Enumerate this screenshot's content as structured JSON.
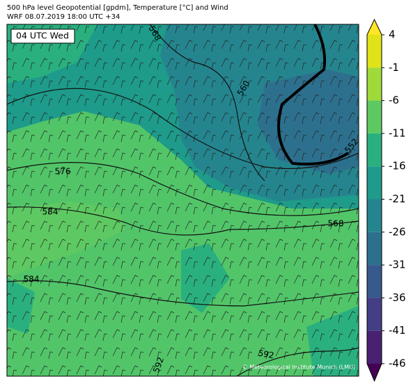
{
  "header": {
    "line1": "500 hPa level Geopotential [gpdm], Temperature [°C] and Wind",
    "line2": "WRF 08.07.2019 18:00 UTC +34"
  },
  "map": {
    "time_label": "04 UTC Wed",
    "contour_labels": [
      "568",
      "560",
      "552",
      "576",
      "584",
      "568",
      "584",
      "592",
      "592"
    ],
    "credit": "© Meteorological Institute Munich (LMU)"
  },
  "colorbar": {
    "ticks": [
      4,
      -1,
      -6,
      -11,
      -16,
      -21,
      -26,
      -31,
      -36,
      -41,
      -46
    ]
  }
}
